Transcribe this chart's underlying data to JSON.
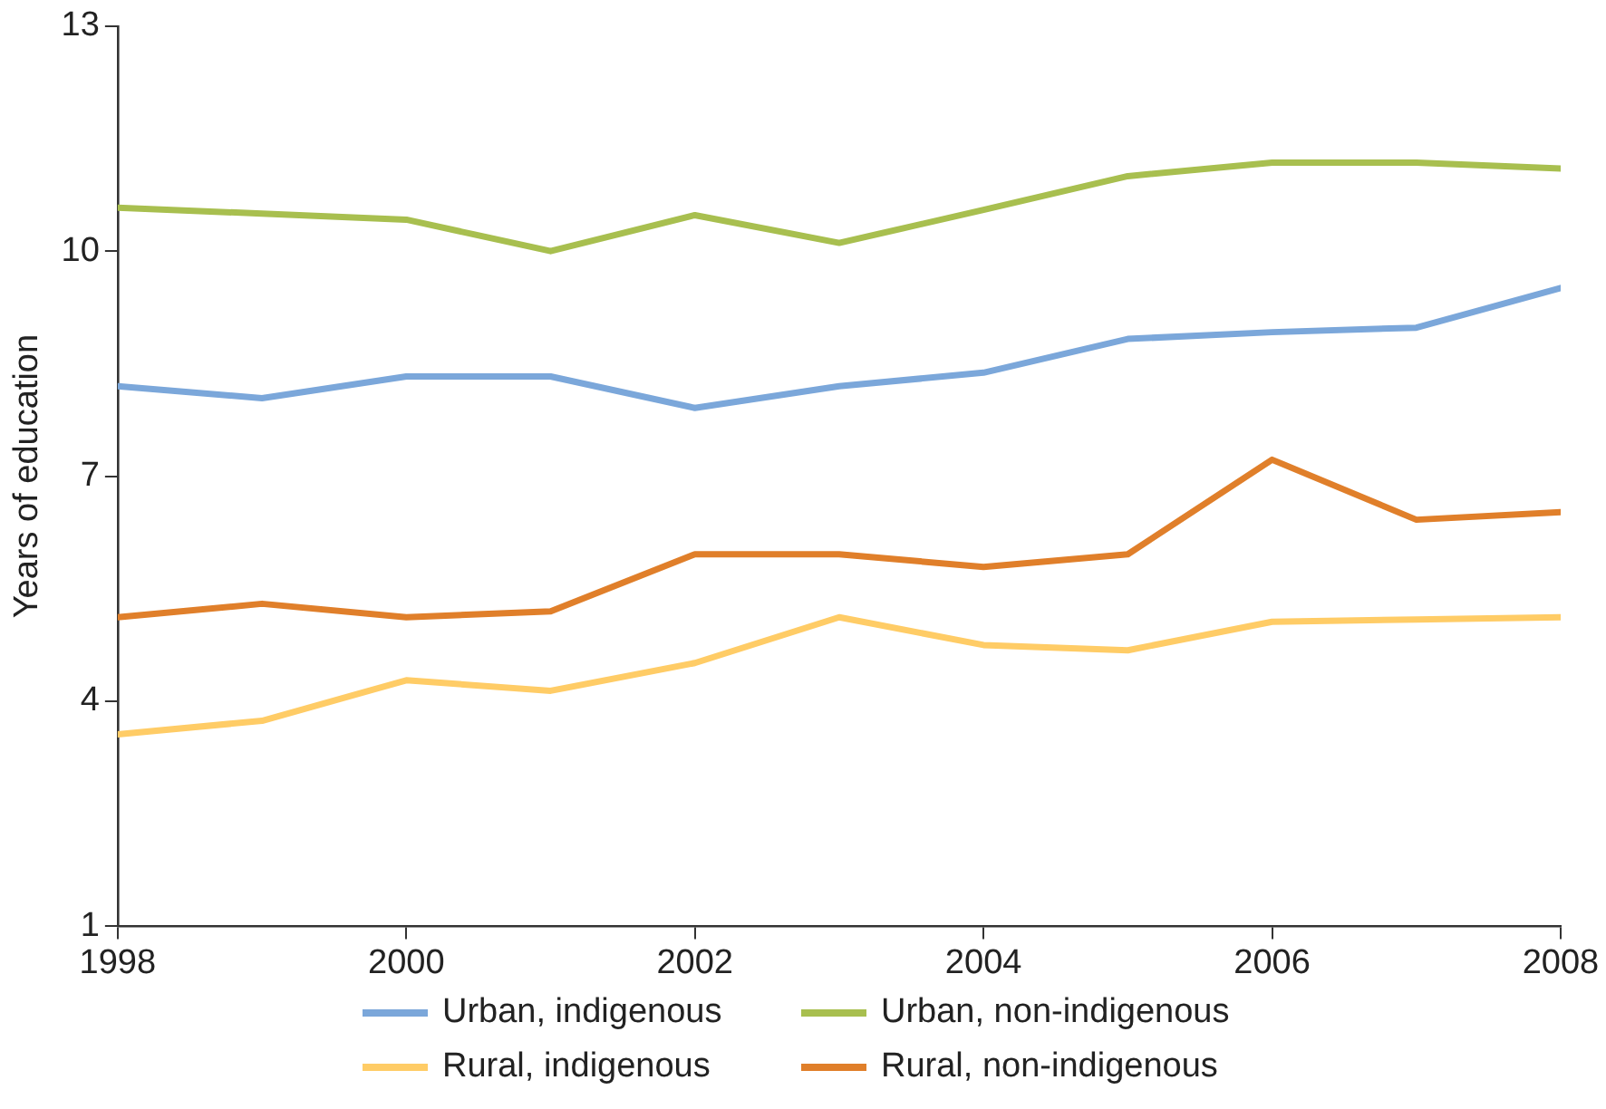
{
  "chart_data": {
    "type": "line",
    "ylabel": "Years of education",
    "x": [
      1998,
      1999,
      2000,
      2001,
      2002,
      2003,
      2004,
      2005,
      2006,
      2007,
      2008
    ],
    "xlim": [
      1998,
      2008
    ],
    "xticks": [
      1998,
      2000,
      2002,
      2004,
      2006,
      2008
    ],
    "ylim": [
      1,
      13
    ],
    "yticks": [
      1,
      4,
      7,
      10,
      13
    ],
    "grid": false,
    "legend": "bottom",
    "marker": "none",
    "line_style": "solid",
    "series": [
      {
        "name": "Urban, indigenous",
        "color": "#7ba7da",
        "values": [
          8.2,
          8.04,
          8.33,
          8.33,
          7.91,
          8.2,
          8.38,
          8.83,
          8.92,
          8.98,
          9.51
        ]
      },
      {
        "name": "Urban, non-indigenous",
        "color": "#a8bf4f",
        "values": [
          10.58,
          10.5,
          10.42,
          10.0,
          10.48,
          10.11,
          10.55,
          11.0,
          11.18,
          11.18,
          11.1
        ]
      },
      {
        "name": "Rural, indigenous",
        "color": "#ffcc66",
        "values": [
          3.56,
          3.74,
          4.28,
          4.14,
          4.51,
          5.12,
          4.75,
          4.68,
          5.06,
          5.09,
          5.12
        ]
      },
      {
        "name": "Rural, non-indigenous",
        "color": "#e07f2a",
        "values": [
          5.12,
          5.3,
          5.12,
          5.2,
          5.96,
          5.96,
          5.79,
          5.96,
          7.22,
          6.42,
          6.52
        ]
      }
    ]
  }
}
